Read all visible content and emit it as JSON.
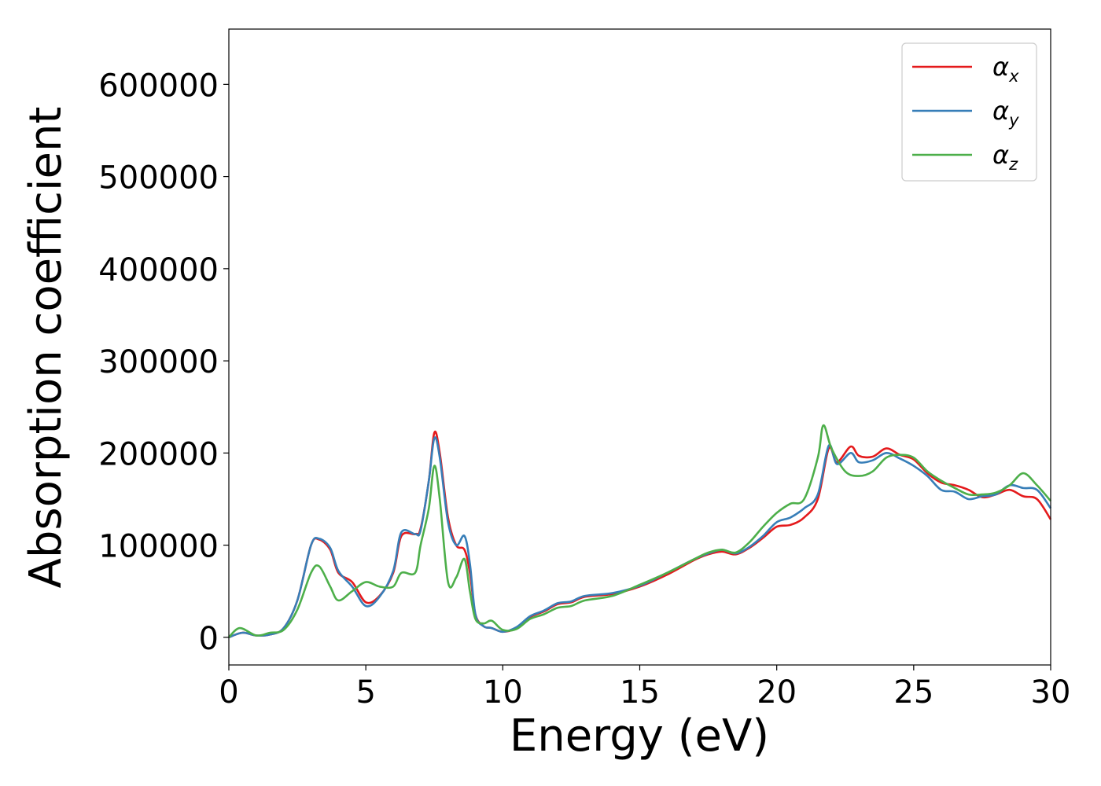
{
  "chart_data": {
    "type": "line",
    "xlabel": "Energy (eV)",
    "ylabel": "Absorption coefficient",
    "xlim": [
      0,
      30
    ],
    "ylim": [
      -30000,
      660000
    ],
    "xticks": [
      0,
      5,
      10,
      15,
      20,
      25,
      30
    ],
    "yticks": [
      0,
      100000,
      200000,
      300000,
      400000,
      500000,
      600000
    ],
    "xtick_labels": [
      "0",
      "5",
      "10",
      "15",
      "20",
      "25",
      "30"
    ],
    "ytick_labels": [
      "0",
      "100000",
      "200000",
      "300000",
      "400000",
      "500000",
      "600000"
    ],
    "grid": false,
    "legend_position": "top-right",
    "series": [
      {
        "name": "α_x",
        "label_main": "α",
        "label_sub": "x",
        "color": "#e41a1c",
        "x": [
          0,
          0.5,
          1,
          1.5,
          2,
          2.5,
          3,
          3.3,
          3.7,
          4,
          4.5,
          5,
          5.5,
          6,
          6.3,
          6.8,
          7,
          7.3,
          7.5,
          7.7,
          8,
          8.3,
          8.6,
          8.8,
          9,
          9.3,
          9.6,
          10,
          10.5,
          11,
          11.5,
          12,
          12.5,
          13,
          14,
          15,
          16,
          17,
          17.5,
          18,
          18.5,
          19,
          19.5,
          20,
          20.5,
          21,
          21.5,
          21.9,
          22.2,
          22.7,
          23,
          23.5,
          24,
          24.5,
          25,
          25.5,
          26,
          26.5,
          27,
          27.5,
          28,
          28.5,
          29,
          29.5,
          30
        ],
        "y": [
          0,
          5000,
          2000,
          3000,
          10000,
          40000,
          100000,
          106000,
          95000,
          70000,
          60000,
          38000,
          45000,
          70000,
          110000,
          112000,
          118000,
          170000,
          222000,
          200000,
          130000,
          100000,
          95000,
          70000,
          25000,
          12000,
          10000,
          6000,
          10000,
          22000,
          28000,
          36000,
          38000,
          44000,
          47000,
          55000,
          68000,
          84000,
          90000,
          93000,
          90000,
          97000,
          108000,
          120000,
          122000,
          130000,
          150000,
          205000,
          190000,
          207000,
          197000,
          196000,
          205000,
          198000,
          193000,
          178000,
          168000,
          165000,
          160000,
          152000,
          155000,
          160000,
          153000,
          150000,
          128000
        ]
      },
      {
        "name": "α_y",
        "label_main": "α",
        "label_sub": "y",
        "color": "#377eb8",
        "x": [
          0,
          0.5,
          1,
          1.5,
          2,
          2.5,
          3,
          3.3,
          3.7,
          4,
          4.5,
          5,
          5.5,
          6,
          6.3,
          6.8,
          7,
          7.3,
          7.5,
          7.7,
          8,
          8.3,
          8.6,
          8.8,
          9,
          9.3,
          9.6,
          10,
          10.5,
          11,
          11.5,
          12,
          12.5,
          13,
          14,
          15,
          16,
          17,
          17.5,
          18,
          18.5,
          19,
          19.5,
          20,
          20.5,
          21,
          21.5,
          21.9,
          22.2,
          22.7,
          23,
          23.5,
          24,
          24.5,
          25,
          25.5,
          26,
          26.5,
          27,
          27.5,
          28,
          28.5,
          29,
          29.5,
          30
        ],
        "y": [
          0,
          5000,
          2000,
          3000,
          10000,
          40000,
          100000,
          107000,
          97000,
          72000,
          55000,
          34000,
          44000,
          72000,
          114000,
          112000,
          116000,
          170000,
          216000,
          195000,
          125000,
          100000,
          110000,
          80000,
          25000,
          12000,
          10000,
          6000,
          11000,
          23000,
          29000,
          37000,
          39000,
          45000,
          48000,
          56000,
          70000,
          85000,
          91000,
          95000,
          91000,
          98000,
          110000,
          125000,
          130000,
          140000,
          155000,
          208000,
          188000,
          200000,
          190000,
          192000,
          200000,
          194000,
          186000,
          175000,
          160000,
          158000,
          150000,
          153000,
          155000,
          165000,
          162000,
          160000,
          140000
        ]
      },
      {
        "name": "α_z",
        "label_main": "α",
        "label_sub": "z",
        "color": "#4daf4a",
        "x": [
          0,
          0.4,
          1,
          1.5,
          2,
          2.5,
          3,
          3.3,
          3.7,
          4,
          4.5,
          5,
          5.5,
          6,
          6.3,
          6.8,
          7,
          7.3,
          7.5,
          7.7,
          8,
          8.3,
          8.6,
          8.8,
          9,
          9.3,
          9.6,
          10,
          10.5,
          11,
          11.5,
          12,
          12.5,
          13,
          14,
          15,
          16,
          17,
          17.5,
          18,
          18.5,
          19,
          19.5,
          20,
          20.5,
          21,
          21.5,
          21.7,
          22,
          22.5,
          23,
          23.5,
          24,
          24.5,
          25,
          25.5,
          26,
          26.5,
          27,
          27.5,
          28,
          28.5,
          29,
          29.5,
          30
        ],
        "y": [
          0,
          10000,
          2000,
          5000,
          8000,
          30000,
          70000,
          77000,
          55000,
          40000,
          50000,
          60000,
          55000,
          55000,
          70000,
          70000,
          100000,
          140000,
          186000,
          150000,
          60000,
          65000,
          85000,
          50000,
          20000,
          15000,
          18000,
          8000,
          9000,
          20000,
          25000,
          32000,
          34000,
          40000,
          45000,
          57000,
          70000,
          85000,
          92000,
          95000,
          92000,
          103000,
          120000,
          135000,
          145000,
          150000,
          195000,
          230000,
          205000,
          180000,
          175000,
          180000,
          195000,
          198000,
          195000,
          180000,
          170000,
          162000,
          155000,
          155000,
          157000,
          165000,
          178000,
          165000,
          148000
        ]
      }
    ]
  }
}
